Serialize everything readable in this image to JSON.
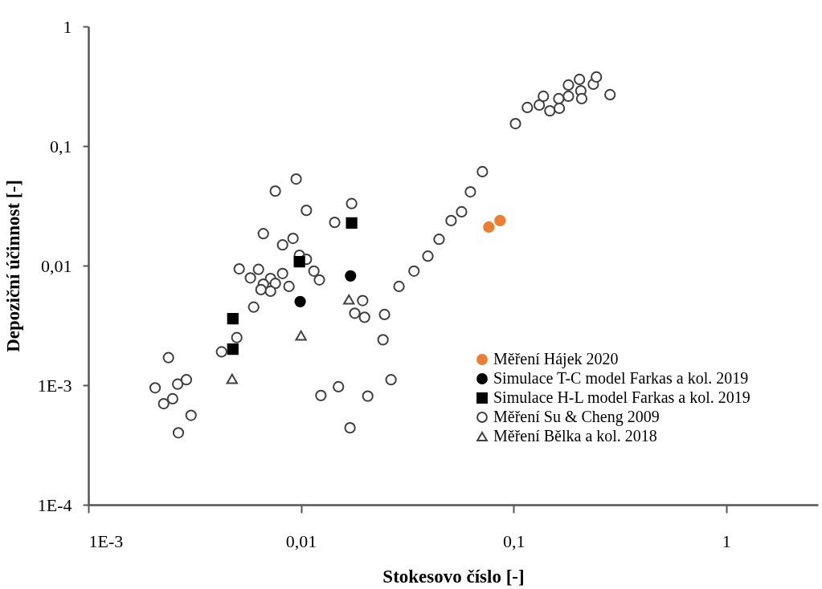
{
  "chart_data": {
    "type": "scatter",
    "xlabel": "Stokesovo číslo [-]",
    "ylabel": "Depoziční účinnost [-]",
    "log": "xy",
    "grid": false,
    "legend": "bottom right",
    "xlim": [
      0.001,
      2.7
    ],
    "ylim": [
      0.0001,
      1
    ],
    "xticks": [
      {
        "value": 0.001,
        "label": "1E-3"
      },
      {
        "value": 0.01,
        "label": "0,01"
      },
      {
        "value": 0.1,
        "label": "0,1"
      },
      1
    ],
    "yticks": [
      {
        "value": 0.0001,
        "label": "1E-4"
      },
      {
        "value": 0.001,
        "label": "1E-3"
      },
      {
        "value": 0.01,
        "label": "0,01"
      },
      {
        "value": 0.1,
        "label": "0,1"
      },
      1
    ],
    "series": [
      {
        "name": "Měření Hájek 2020",
        "color": "#ed7d31",
        "marker": "circle",
        "x": [
          0.0764,
          0.0863
        ],
        "values": [
          0.021,
          0.0238
        ]
      },
      {
        "name": "Simulace T-C model Farkas a kol. 2019",
        "color": "#000000",
        "marker": "circle",
        "x": [
          0.0171,
          0.00991
        ],
        "values": [
          0.0082,
          0.005
        ]
      },
      {
        "name": "Simulace H-L model Farkas a kol. 2019",
        "color": "#000000",
        "marker": "square",
        "x": [
          0.0173,
          0.00983,
          0.00478,
          0.00478
        ],
        "values": [
          0.0227,
          0.0108,
          0.0036,
          0.002
        ]
      },
      {
        "name": "Měření Su & Cheng 2009",
        "color": "#ffffff",
        "marker": "circle",
        "x": [
          0.00238,
          0.00206,
          0.00263,
          0.00289,
          0.00249,
          0.00226,
          0.00304,
          0.00265,
          0.00499,
          0.00423,
          0.00949,
          0.00757,
          0.0173,
          0.0106,
          0.0144,
          0.00665,
          0.00917,
          0.00819,
          0.00983,
          0.0106,
          0.00512,
          0.00631,
          0.00578,
          0.00819,
          0.00719,
          0.00757,
          0.00665,
          0.00648,
          0.00719,
          0.00878,
          0.0115,
          0.0122,
          0.0195,
          0.0289,
          0.00599,
          0.0179,
          0.0199,
          0.0247,
          0.0243,
          0.034,
          0.0395,
          0.0446,
          0.0508,
          0.0569,
          0.0626,
          0.0713,
          0.0124,
          0.015,
          0.0206,
          0.0265,
          0.017,
          0.102,
          0.116,
          0.132,
          0.138,
          0.148,
          0.163,
          0.164,
          0.181,
          0.181,
          0.204,
          0.207,
          0.209,
          0.237,
          0.245,
          0.284
        ],
        "values": [
          0.0017,
          0.00095,
          0.00102,
          0.00111,
          0.00077,
          0.0007,
          0.00056,
          0.0004,
          0.0025,
          0.0019,
          0.053,
          0.042,
          0.033,
          0.029,
          0.023,
          0.0185,
          0.0169,
          0.0149,
          0.0122,
          0.0113,
          0.0094,
          0.0093,
          0.0079,
          0.0086,
          0.0078,
          0.0071,
          0.007,
          0.0063,
          0.0061,
          0.0067,
          0.009,
          0.0076,
          0.0051,
          0.0067,
          0.0045,
          0.004,
          0.0037,
          0.0039,
          0.0024,
          0.009,
          0.012,
          0.0166,
          0.0238,
          0.0282,
          0.0414,
          0.061,
          0.00082,
          0.00097,
          0.00081,
          0.00111,
          0.00044,
          0.154,
          0.21,
          0.22,
          0.261,
          0.197,
          0.249,
          0.207,
          0.324,
          0.261,
          0.361,
          0.29,
          0.249,
          0.329,
          0.378,
          0.269
        ]
      },
      {
        "name": "Měření Bělka a kol. 2018",
        "color": "#ffffff",
        "marker": "triangle",
        "x": [
          0.00474,
          0.01,
          0.0168
        ],
        "values": [
          0.00113,
          0.0026,
          0.0052
        ]
      }
    ]
  }
}
